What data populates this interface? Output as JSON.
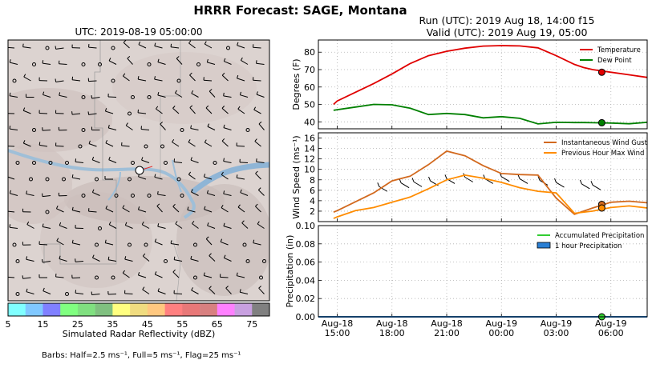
{
  "suptitle": "HRRR Forecast: SAGE, Montana",
  "map": {
    "title": "UTC: 2019-08-19 05:00:00",
    "colorbar": {
      "label": "Simulated Radar Reflectivity (dBZ)",
      "ticks": [
        "5",
        "15",
        "25",
        "35",
        "45",
        "55",
        "65",
        "75"
      ],
      "colors": [
        "#80ffff",
        "#80c8ff",
        "#8080ff",
        "#80ff80",
        "#80e080",
        "#80c080",
        "#ffff80",
        "#f0dc80",
        "#ffc880",
        "#ff8080",
        "#e87878",
        "#d88080",
        "#ff80ff",
        "#c8a0e0",
        "#808080"
      ]
    },
    "barbs_note": "Barbs: Half=2.5 ms⁻¹, Full=5 ms⁻¹, Flag=25 ms⁻¹"
  },
  "run_title": "Run (UTC): 2019 Aug 18, 14:00 f15",
  "valid_title": "Valid (UTC): 2019 Aug 19, 05:00",
  "chart_data": [
    {
      "type": "line",
      "ylabel": "Degrees (F)",
      "ylim": [
        36,
        87
      ],
      "yticks": [
        40,
        50,
        60,
        70,
        80
      ],
      "legend_position": "top-right",
      "x_hours_since_1500": [
        -0.2,
        0,
        1,
        2,
        3,
        4,
        5,
        6,
        7,
        8,
        9,
        10,
        11,
        12,
        13,
        13.5,
        14,
        15,
        16,
        17
      ],
      "series": [
        {
          "name": "Temperature",
          "color": "#e00000",
          "values": [
            50,
            52,
            57,
            62,
            67.5,
            73.5,
            78,
            80.5,
            82.3,
            83.5,
            83.8,
            83.6,
            82.5,
            78,
            73,
            71.2,
            70,
            68.5,
            67,
            65.5
          ]
        },
        {
          "name": "Dew Point",
          "color": "#008000",
          "values": [
            46.6,
            47,
            48.5,
            50,
            49.8,
            47.8,
            44.2,
            44.8,
            44.2,
            42.3,
            43,
            42,
            38.8,
            39.7,
            39.6,
            39.6,
            39.5,
            39.3,
            38.9,
            39.7
          ]
        }
      ],
      "marker": {
        "x": 14.5,
        "values": [
          68.5,
          39.5
        ]
      }
    },
    {
      "type": "line",
      "ylabel": "Wind Speed (ms⁻¹)",
      "ylim": [
        0,
        17
      ],
      "yticks": [
        2,
        4,
        6,
        8,
        10,
        12,
        14,
        16
      ],
      "legend_position": "top-right",
      "x_hours_since_1500": [
        -0.2,
        0,
        1,
        2,
        3,
        4,
        5,
        6,
        7,
        8,
        9,
        10,
        11,
        12,
        13,
        14,
        15,
        16,
        17
      ],
      "series": [
        {
          "name": "Instantaneous Wind Gust",
          "color": "#d2691e",
          "values": [
            1.8,
            2.1,
            3.8,
            5.5,
            7.8,
            8.7,
            10.9,
            13.5,
            12.6,
            10.7,
            9.2,
            9.0,
            8.9,
            4.5,
            1.4,
            2.6,
            3.7,
            3.9,
            3.6
          ]
        },
        {
          "name": "Previous Hour Max Wind",
          "color": "#ff8c00",
          "values": [
            0.6,
            0.9,
            2.1,
            2.7,
            3.7,
            4.7,
            6.3,
            8.0,
            8.9,
            8.3,
            7.5,
            6.5,
            5.8,
            5.5,
            1.6,
            2.0,
            2.7,
            3.0,
            2.6
          ]
        }
      ],
      "marker": {
        "x": 14.5,
        "values": [
          3.3,
          2.6
        ]
      }
    },
    {
      "type": "line",
      "ylabel": "Precipitation (in)",
      "ylim": [
        0,
        0.1
      ],
      "yticks": [
        "0.00",
        "0.02",
        "0.04",
        "0.06",
        "0.08",
        "0.10"
      ],
      "legend_position": "top-right",
      "series": [
        {
          "name": "Accumulated Precipitation",
          "color": "#32cd32",
          "values": [
            0
          ]
        },
        {
          "name": "1 hour Precipitation",
          "color": "#2a7fd4",
          "values": [
            0
          ]
        }
      ],
      "marker": {
        "x": 14.5,
        "values": [
          0
        ]
      }
    }
  ],
  "x_ticks": [
    {
      "x": 0,
      "line1": "Aug-18",
      "line2": "15:00"
    },
    {
      "x": 3,
      "line1": "Aug-18",
      "line2": "18:00"
    },
    {
      "x": 6,
      "line1": "Aug-18",
      "line2": "21:00"
    },
    {
      "x": 9,
      "line1": "Aug-19",
      "line2": "00:00"
    },
    {
      "x": 12,
      "line1": "Aug-19",
      "line2": "03:00"
    },
    {
      "x": 15,
      "line1": "Aug-19",
      "line2": "06:00"
    }
  ]
}
